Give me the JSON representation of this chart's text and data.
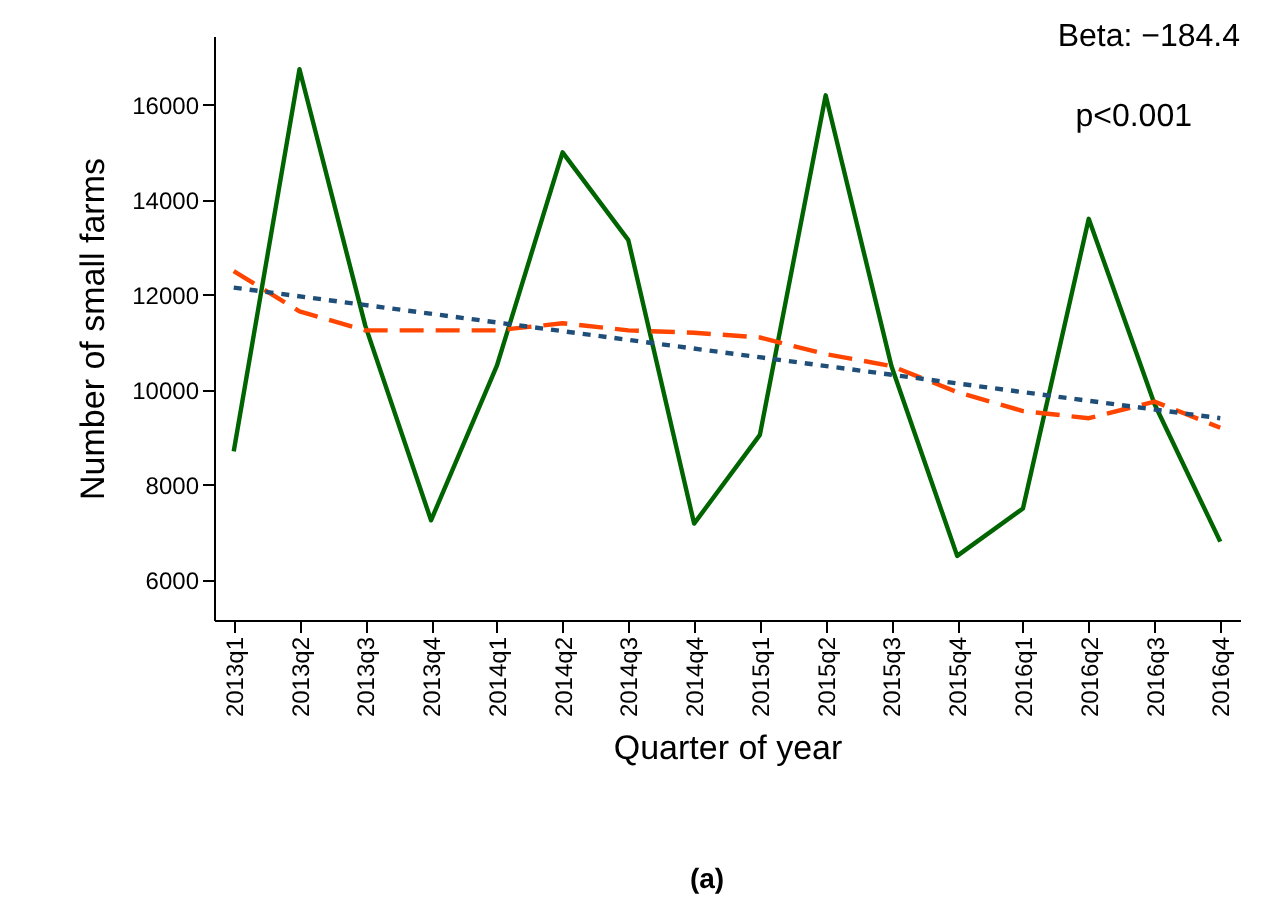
{
  "chart_data": {
    "type": "line",
    "xlabel": "Quarter of year",
    "ylabel": "Number of small farms",
    "categories": [
      "2013q1",
      "2013q2",
      "2013q3",
      "2013q4",
      "2014q1",
      "2014q2",
      "2014q3",
      "2014q4",
      "2015q1",
      "2015q2",
      "2015q3",
      "2015q4",
      "2016q1",
      "2016q2",
      "2016q3",
      "2016q4"
    ],
    "series": [
      {
        "color": "#006400",
        "line_style": "solid",
        "values": [
          8700,
          16750,
          11350,
          7250,
          10500,
          15000,
          13150,
          7180,
          9050,
          16200,
          10500,
          6500,
          7500,
          13600,
          9700,
          6800
        ]
      },
      {
        "color": "#ff4500",
        "line_style": "dashed",
        "values": [
          12500,
          11650,
          11250,
          11250,
          11250,
          11400,
          11250,
          11200,
          11100,
          10750,
          10500,
          9950,
          9550,
          9400,
          9750,
          9200
        ]
      },
      {
        "type": "line",
        "color": "#1f4e79",
        "line_style": "dotted",
        "x": [
          "2013q1",
          "2016q4"
        ],
        "values": [
          12150,
          9400
        ]
      }
    ],
    "ylim": [
      5150,
      17450
    ],
    "yticks": [
      6000,
      8000,
      10000,
      12000,
      14000,
      16000
    ],
    "grid": false,
    "annotations": [
      "Beta: −184.4",
      "p<0.001",
      "(a)"
    ]
  }
}
